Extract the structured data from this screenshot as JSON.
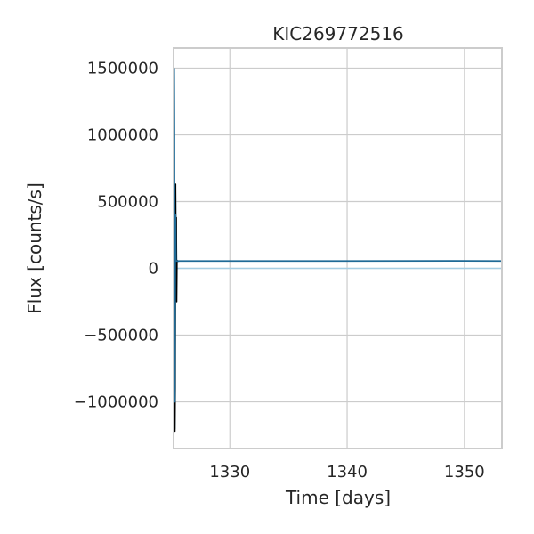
{
  "chart_data": {
    "type": "line",
    "title": "KIC269772516",
    "xlabel": "Time [days]",
    "ylabel": "Flux [counts/s]",
    "xlim": [
      1325.2,
      1353.2
    ],
    "ylim": [
      -1350000,
      1650000
    ],
    "grid": true,
    "x_ticks": [
      1330,
      1340,
      1350
    ],
    "x_tick_labels": [
      "1330",
      "1340",
      "1350"
    ],
    "y_ticks": [
      -1000000,
      -500000,
      0,
      500000,
      1000000,
      1500000
    ],
    "y_tick_labels": [
      "−1000000",
      "−500000",
      "0",
      "500000",
      "1000000",
      "1500000"
    ],
    "colors": {
      "frame": "#cccccc",
      "grid": "#cccccc",
      "series_light": "#a6cee3",
      "series_black": "#000000",
      "series_main": "#1f6a96"
    },
    "series": [
      {
        "points": [
          [
            1325.26,
            1500000
          ],
          [
            1325.28,
            1050000
          ],
          [
            1325.3,
            -900000
          ],
          [
            1325.33,
            -1200000
          ],
          [
            1325.37,
            600000
          ],
          [
            1325.42,
            380000
          ],
          [
            1325.48,
            55000
          ],
          [
            1325.55,
            48000
          ],
          [
            1325.7,
            55000
          ],
          [
            1326.0,
            55000
          ],
          [
            1330.0,
            55000
          ],
          [
            1335.0,
            55000
          ],
          [
            1340.0,
            55000
          ],
          [
            1345.0,
            55000
          ],
          [
            1349.0,
            56000
          ],
          [
            1350.0,
            55000
          ],
          [
            1353.2,
            55000
          ]
        ]
      },
      {
        "points": [
          [
            1325.3,
            400000
          ],
          [
            1325.32,
            -1220000
          ],
          [
            1325.35,
            -900000
          ],
          [
            1325.38,
            630000
          ],
          [
            1325.4,
            200000
          ],
          [
            1325.44,
            380000
          ],
          [
            1325.47,
            -250000
          ],
          [
            1325.5,
            60000
          ],
          [
            1325.55,
            52000
          ]
        ]
      },
      {
        "points": [
          [
            1325.25,
            1500000
          ],
          [
            1325.27,
            1000000
          ],
          [
            1325.29,
            -900000
          ],
          [
            1325.31,
            -1000000
          ],
          [
            1325.34,
            0
          ],
          [
            1325.36,
            400000
          ],
          [
            1325.4,
            55000
          ],
          [
            1325.5,
            55000
          ],
          [
            1326.0,
            55000
          ],
          [
            1330.0,
            55000
          ],
          [
            1340.0,
            55000
          ],
          [
            1350.0,
            56000
          ],
          [
            1353.2,
            55000
          ]
        ]
      }
    ]
  }
}
